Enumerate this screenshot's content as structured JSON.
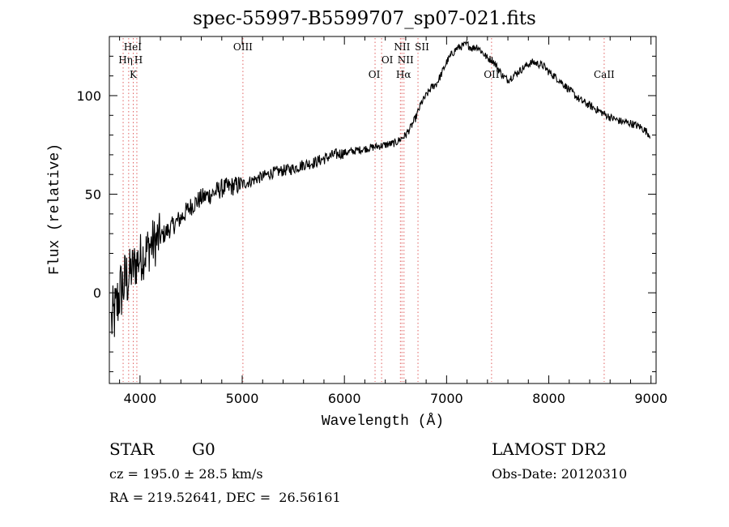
{
  "chart_data": {
    "type": "line",
    "title": "spec-55997-B5599707_sp07-021.fits",
    "xlabel": "Wavelength (Å)",
    "ylabel": "Flux (relative)",
    "xlim": [
      3700,
      9050
    ],
    "ylim": [
      -46,
      130
    ],
    "xticks": [
      4000,
      5000,
      6000,
      7000,
      8000,
      9000
    ],
    "yticks": [
      0,
      50,
      100
    ],
    "series": [
      {
        "name": "flux",
        "x": [
          3720,
          3760,
          3800,
          3850,
          3900,
          3950,
          4000,
          4050,
          4100,
          4150,
          4200,
          4300,
          4400,
          4500,
          4600,
          4700,
          4800,
          4900,
          5000,
          5100,
          5200,
          5300,
          5400,
          5500,
          5600,
          5700,
          5800,
          5900,
          6000,
          6100,
          6200,
          6300,
          6400,
          6500,
          6550,
          6600,
          6650,
          6700,
          6750,
          6800,
          6850,
          6900,
          6950,
          7000,
          7050,
          7100,
          7150,
          7200,
          7250,
          7300,
          7350,
          7400,
          7450,
          7500,
          7550,
          7600,
          7650,
          7700,
          7750,
          7800,
          7850,
          7900,
          7950,
          8000,
          8100,
          8200,
          8300,
          8400,
          8500,
          8600,
          8700,
          8800,
          8900,
          8950,
          8990
        ],
        "y": [
          -15,
          -10,
          0,
          5,
          10,
          14,
          18,
          20,
          24,
          26,
          28,
          33,
          38,
          44,
          48,
          50,
          53,
          54,
          55,
          57,
          59,
          61,
          62,
          63,
          65,
          66,
          68,
          70,
          71,
          72,
          73,
          74,
          75,
          76,
          78,
          80,
          84,
          89,
          96,
          100,
          104,
          106,
          111,
          117,
          121,
          124,
          125,
          126,
          124,
          125,
          122,
          119,
          118,
          114,
          110,
          108,
          110,
          112,
          114,
          116,
          117,
          116,
          115,
          112,
          108,
          103,
          98,
          95,
          92,
          89,
          87,
          86,
          84,
          82,
          80
        ]
      }
    ],
    "lines": [
      {
        "wavelength": 3835,
        "label": "Hη"
      },
      {
        "wavelength": 3889,
        "label": "HeI"
      },
      {
        "wavelength": 3934,
        "label": "K"
      },
      {
        "wavelength": 3969,
        "label": "H"
      },
      {
        "wavelength": 5007,
        "label": "OIII"
      },
      {
        "wavelength": 6300,
        "label": "OI"
      },
      {
        "wavelength": 6364,
        "label": "OI"
      },
      {
        "wavelength": 6548,
        "label": "NII"
      },
      {
        "wavelength": 6563,
        "label": "Hα"
      },
      {
        "wavelength": 6583,
        "label": "NII"
      },
      {
        "wavelength": 6720,
        "label": "SII"
      },
      {
        "wavelength": 7440,
        "label": "OII"
      },
      {
        "wavelength": 8542,
        "label": "CaII"
      }
    ]
  },
  "info": {
    "object_type": "STAR",
    "subclass": "G0",
    "survey": "LAMOST DR2",
    "cz": "cz = 195.0 ± 28.5 km/s",
    "obs_date": "Obs-Date: 20120310",
    "coords": "RA = 219.52641, DEC =  26.56161"
  },
  "colors": {
    "spectrum": "#000000",
    "line_markers": "#e06060",
    "axes": "#000000",
    "background": "#ffffff"
  }
}
